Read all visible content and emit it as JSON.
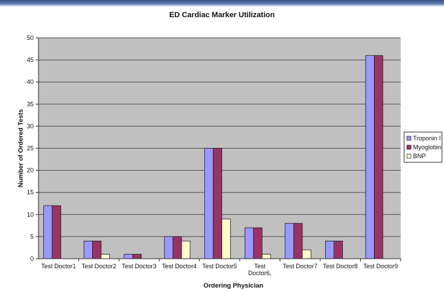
{
  "chart_data": {
    "type": "bar",
    "title": "ED Cardiac Marker Utilization",
    "xlabel": "Ordering Physician",
    "ylabel": "Number of Ordered Tests",
    "categories": [
      "Test Doctor1",
      "Test Doctor2",
      "Test Doctor3",
      "Test Doctor4",
      "Test Doctor5",
      "Test Doctor6,",
      "Test Doctor7",
      "Test Doctor8",
      "Test Doctor9"
    ],
    "category_lines": [
      [
        "Test Doctor1"
      ],
      [
        "Test Doctor2"
      ],
      [
        "Test Doctor3"
      ],
      [
        "Test Doctor4"
      ],
      [
        "Test Doctor5"
      ],
      [
        "Test",
        "Doctor6,"
      ],
      [
        "Test Doctor7"
      ],
      [
        "Test Doctor8"
      ],
      [
        "Test Doctor9"
      ]
    ],
    "series": [
      {
        "name": "Troponin I",
        "color": "#9999ff",
        "values": [
          12,
          4,
          1,
          5,
          25,
          7,
          8,
          4,
          46
        ]
      },
      {
        "name": "Myoglobin",
        "color": "#993366",
        "values": [
          12,
          4,
          1,
          5,
          25,
          7,
          8,
          4,
          46
        ]
      },
      {
        "name": "BNP",
        "color": "#ffffcc",
        "values": [
          0,
          1,
          0,
          4,
          9,
          1,
          2,
          0,
          0
        ]
      }
    ],
    "ylim": [
      0,
      50
    ],
    "yticks": [
      0,
      5,
      10,
      15,
      20,
      25,
      30,
      35,
      40,
      45,
      50
    ],
    "grid": true,
    "plot_background": "#c0c0c0",
    "legend_position": "right"
  }
}
